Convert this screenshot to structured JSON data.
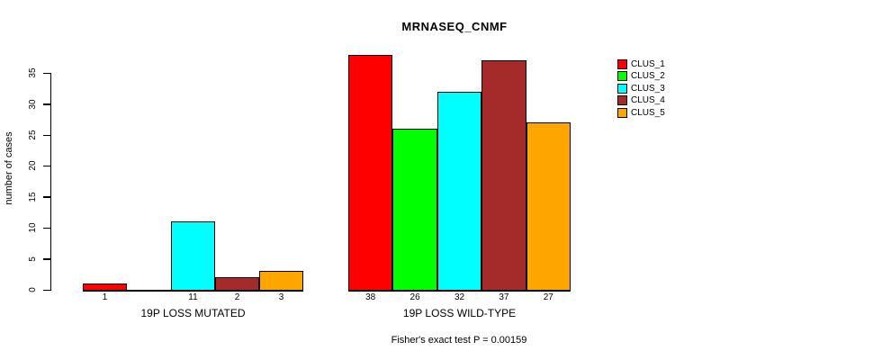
{
  "title": "MRNASEQ_CNMF",
  "annotation": "Fisher's exact test P = 0.00159",
  "chart_data": {
    "type": "bar",
    "title": "MRNASEQ_CNMF",
    "xlabel": "",
    "ylabel": "number of cases",
    "ylim": [
      0,
      35
    ],
    "yticks": [
      0,
      5,
      10,
      15,
      20,
      25,
      30,
      35
    ],
    "grid": false,
    "legend_position": "right",
    "categories": [
      "19P LOSS MUTATED",
      "19P LOSS WILD-TYPE"
    ],
    "series": [
      {
        "name": "CLUS_1",
        "color": "#ff0000",
        "values": [
          1,
          38
        ]
      },
      {
        "name": "CLUS_2",
        "color": "#00ff00",
        "values": [
          0,
          26
        ]
      },
      {
        "name": "CLUS_3",
        "color": "#00ffff",
        "values": [
          11,
          32
        ]
      },
      {
        "name": "CLUS_4",
        "color": "#a52a2a",
        "values": [
          2,
          37
        ]
      },
      {
        "name": "CLUS_5",
        "color": "#ffa500",
        "values": [
          3,
          27
        ]
      }
    ],
    "bar_value_labels": [
      [
        "1",
        "",
        "11",
        "2",
        "3"
      ],
      [
        "38",
        "26",
        "32",
        "37",
        "27"
      ]
    ],
    "annotation": "Fisher's exact test P = 0.00159"
  }
}
